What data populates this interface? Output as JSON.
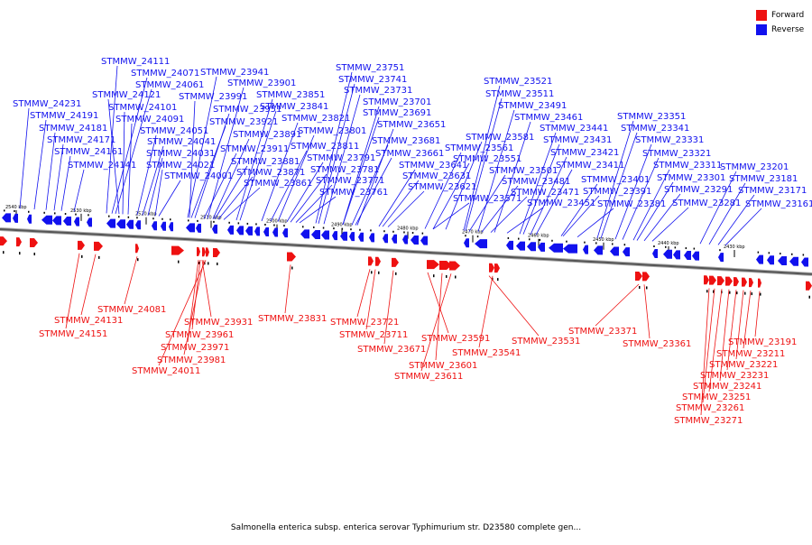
{
  "legend": {
    "forward": {
      "label": "Forward",
      "color": "#ee1111"
    },
    "reverse": {
      "label": "Reverse",
      "color": "#1111ee"
    }
  },
  "caption": "Salmonella enterica subsp. enterica serovar Typhimurium str. D23580 complete gen...",
  "scale": {
    "ticks": [
      "2540 kbp",
      "2530 kbp",
      "2520 kbp",
      "2510 kbp",
      "2500 kbp",
      "2490 kbp",
      "2480 kbp",
      "2470 kbp",
      "2460 kbp",
      "2450 kbp",
      "2440 kbp",
      "2430 kbp"
    ]
  },
  "reverse_labels": [
    "STMMW_24231",
    "STMMW_24191",
    "STMMW_24181",
    "STMMW_24171",
    "STMMW_24161",
    "STMMW_24141",
    "STMMW_24111",
    "STMMW_24071",
    "STMMW_24061",
    "STMMW_24121",
    "STMMW_24101",
    "STMMW_24091",
    "STMMW_24051",
    "STMMW_24041",
    "STMMW_24031",
    "STMMW_24021",
    "STMMW_24001",
    "STMMW_23941",
    "STMMW_23991",
    "STMMW_23901",
    "STMMW_23951",
    "STMMW_23921",
    "STMMW_23891",
    "STMMW_23911",
    "STMMW_23881",
    "STMMW_23871",
    "STMMW_23861",
    "STMMW_23851",
    "STMMW_23841",
    "STMMW_23821",
    "STMMW_23801",
    "STMMW_23811",
    "STMMW_23791",
    "STMMW_23781",
    "STMMW_23771",
    "STMMW_23761",
    "STMMW_23751",
    "STMMW_23741",
    "STMMW_23731",
    "STMMW_23701",
    "STMMW_23691",
    "STMMW_23651",
    "STMMW_23681",
    "STMMW_23661",
    "STMMW_23641",
    "STMMW_23631",
    "STMMW_23621",
    "STMMW_23581",
    "STMMW_23561",
    "STMMW_23551",
    "STMMW_23571",
    "STMMW_23521",
    "STMMW_23511",
    "STMMW_23491",
    "STMMW_23461",
    "STMMW_23441",
    "STMMW_23431",
    "STMMW_23421",
    "STMMW_23411",
    "STMMW_23501",
    "STMMW_23481",
    "STMMW_23471",
    "STMMW_23451",
    "STMMW_23401",
    "STMMW_23391",
    "STMMW_23381",
    "STMMW_23351",
    "STMMW_23341",
    "STMMW_23331",
    "STMMW_23321",
    "STMMW_23311",
    "STMMW_23301",
    "STMMW_23291",
    "STMMW_23281",
    "STMMW_23201",
    "STMMW_23181",
    "STMMW_23171",
    "STMMW_23161"
  ],
  "forward_labels": [
    "STMMW_24081",
    "STMMW_24131",
    "STMMW_24151",
    "STMMW_23931",
    "STMMW_23961",
    "STMMW_23971",
    "STMMW_23981",
    "STMMW_24011",
    "STMMW_23831",
    "STMMW_23721",
    "STMMW_23711",
    "STMMW_23671",
    "STMMW_23591",
    "STMMW_23601",
    "STMMW_23611",
    "STMMW_23531",
    "STMMW_23541",
    "STMMW_23371",
    "STMMW_23361",
    "STMMW_23191",
    "STMMW_23211",
    "STMMW_23221",
    "STMMW_23231",
    "STMMW_23241",
    "STMMW_23251",
    "STMMW_23261",
    "STMMW_23271"
  ]
}
